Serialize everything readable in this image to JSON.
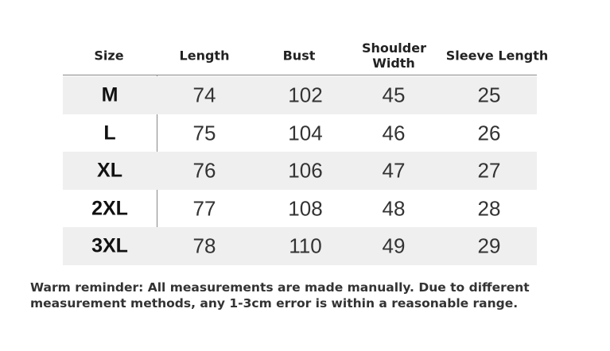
{
  "table": {
    "header": [
      "Size",
      "Length",
      "Bust",
      "Shoulder Width",
      "Sleeve Length"
    ],
    "rows": [
      [
        "M",
        74,
        102,
        45,
        25
      ],
      [
        "L",
        75,
        104,
        46,
        26
      ],
      [
        "XL",
        76,
        106,
        47,
        27
      ],
      [
        "2XL",
        77,
        108,
        48,
        28
      ],
      [
        "3XL",
        78,
        110,
        49,
        29
      ]
    ]
  },
  "note": "Warm reminder: All measurements are made manually. Due to different measurement methods, any 1-3cm error is within a reasonable range."
}
